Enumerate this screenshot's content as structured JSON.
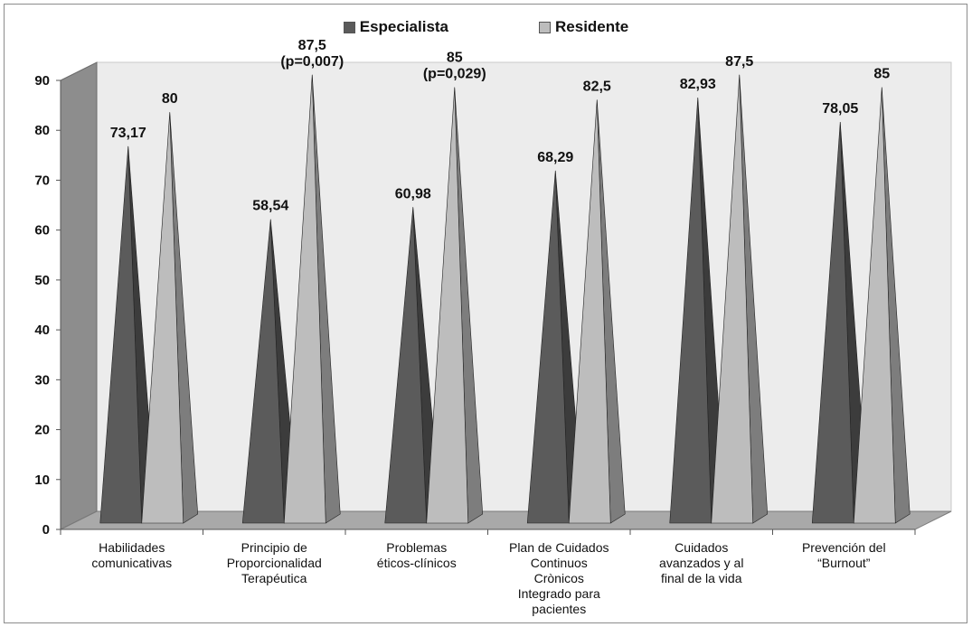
{
  "chart_data": {
    "type": "bar",
    "title": "",
    "xlabel": "",
    "ylabel": "",
    "ylim": [
      0,
      90
    ],
    "yticks": [
      0,
      10,
      20,
      30,
      40,
      50,
      60,
      70,
      80,
      90
    ],
    "grid": false,
    "legend_position": "top-center",
    "categories": [
      "Habilidades comunicativas",
      "Principio de Proporcionalidad Terapéutica",
      "Problemas éticos-clínicos",
      "Plan de Cuidados Continuos Crònicos Integrado para pacientes",
      "Cuidados avanzados  y al final de la vida",
      "Prevención  del “Burnout”"
    ],
    "category_lines": [
      [
        "Habilidades",
        "comunicativas"
      ],
      [
        "Principio de",
        "Proporcionalidad",
        "Terapéutica"
      ],
      [
        "Problemas",
        "éticos-clínicos"
      ],
      [
        "Plan de Cuidados",
        "Continuos",
        "Crònicos",
        "Integrado  para",
        "pacientes"
      ],
      [
        "Cuidados",
        "avanzados  y al",
        "final de la vida"
      ],
      [
        "Prevención  del",
        "“Burnout”"
      ]
    ],
    "series": [
      {
        "name": "Especialista",
        "color": "#5b5b5b",
        "values": [
          73.17,
          58.54,
          60.98,
          68.29,
          82.93,
          78.05
        ],
        "labels": [
          [
            "73,17"
          ],
          [
            "58,54"
          ],
          [
            "60,98"
          ],
          [
            "68,29"
          ],
          [
            "82,93"
          ],
          [
            "78,05"
          ]
        ]
      },
      {
        "name": "Residente",
        "color": "#bdbdbd",
        "values": [
          80,
          87.5,
          85,
          82.5,
          87.5,
          85
        ],
        "labels": [
          [
            "80"
          ],
          [
            "87,5",
            "(p=0,007)"
          ],
          [
            "85",
            "(p=0,029)"
          ],
          [
            "82,5"
          ],
          [
            "87,5"
          ],
          [
            "85"
          ]
        ]
      }
    ]
  }
}
